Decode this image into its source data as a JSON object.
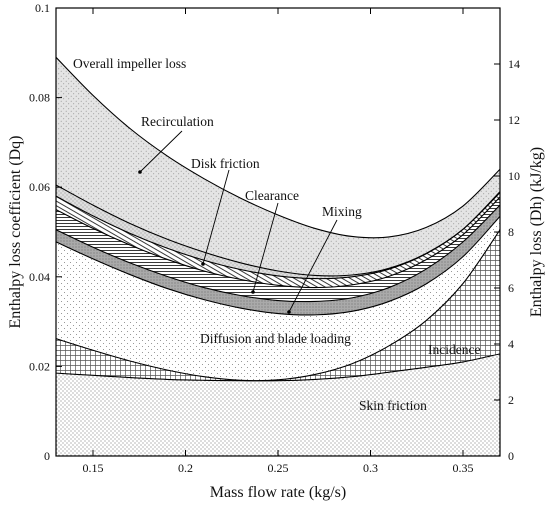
{
  "chart_data": {
    "type": "area",
    "title": "",
    "xlabel": "Mass flow rate (kg/s)",
    "ylabel_left": "Enthalpy loss coefficient (Dq)",
    "ylabel_right": "Enthalpy loss (Dh) (kJ/kg)",
    "xlim": [
      0.13,
      0.37
    ],
    "ylim_left": [
      0,
      0.1
    ],
    "ylim_right_max": 16,
    "x_ticks": [
      0.15,
      0.2,
      0.25,
      0.3,
      0.35
    ],
    "x_tick_labels": [
      "0.15",
      "0.2",
      "0.25",
      "0.3",
      "0.35"
    ],
    "y_ticks_left": [
      0,
      0.02,
      0.04,
      0.06,
      0.08,
      0.1
    ],
    "y_tick_labels_left": [
      "0",
      "0.02",
      "0.04",
      "0.06",
      "0.08",
      "0.1"
    ],
    "y_ticks_right": [
      0,
      2,
      4,
      6,
      8,
      10,
      12,
      14
    ],
    "y_tick_labels_right": [
      "0",
      "2",
      "4",
      "6",
      "8",
      "10",
      "12",
      "14"
    ],
    "x": [
      0.13,
      0.15,
      0.17,
      0.19,
      0.21,
      0.23,
      0.25,
      0.27,
      0.29,
      0.31,
      0.33,
      0.35,
      0.37
    ],
    "boundaries": [
      {
        "name": "Skin friction",
        "values": [
          0.0185,
          0.018,
          0.0175,
          0.0171,
          0.0169,
          0.0168,
          0.0168,
          0.0171,
          0.0177,
          0.0187,
          0.0198,
          0.021,
          0.0228
        ]
      },
      {
        "name": "Incidence",
        "values": [
          0.0262,
          0.0236,
          0.0212,
          0.0192,
          0.0177,
          0.0169,
          0.017,
          0.0182,
          0.0206,
          0.0246,
          0.0302,
          0.0385,
          0.0505
        ]
      },
      {
        "name": "Diffusion and blade loading",
        "values": [
          0.0478,
          0.044,
          0.0405,
          0.0374,
          0.0349,
          0.033,
          0.0318,
          0.0315,
          0.0323,
          0.0345,
          0.0384,
          0.0445,
          0.0535
        ]
      },
      {
        "name": "Mixing",
        "values": [
          0.0505,
          0.0466,
          0.0431,
          0.0401,
          0.0376,
          0.0358,
          0.0347,
          0.0345,
          0.0353,
          0.0376,
          0.0417,
          0.0478,
          0.056
        ]
      },
      {
        "name": "Clearance",
        "values": [
          0.055,
          0.0508,
          0.0471,
          0.0439,
          0.0413,
          0.0394,
          0.0381,
          0.0376,
          0.0382,
          0.0401,
          0.0438,
          0.0494,
          0.0578
        ]
      },
      {
        "name": "Disk friction",
        "values": [
          0.058,
          0.0536,
          0.0497,
          0.0464,
          0.0437,
          0.0416,
          0.0402,
          0.0396,
          0.04,
          0.0417,
          0.0451,
          0.0506,
          0.0588
        ]
      },
      {
        "name": "Recirculation",
        "values": [
          0.0605,
          0.056,
          0.0519,
          0.0484,
          0.0455,
          0.0431,
          0.0413,
          0.0403,
          0.0404,
          0.0419,
          0.0452,
          0.0506,
          0.059
        ]
      },
      {
        "name": "Overall impeller loss",
        "values": [
          0.089,
          0.0805,
          0.0731,
          0.067,
          0.0619,
          0.0575,
          0.0538,
          0.0508,
          0.049,
          0.0489,
          0.051,
          0.0558,
          0.064
        ]
      }
    ],
    "annotations": [
      {
        "text": "Overall impeller loss"
      },
      {
        "text": "Recirculation"
      },
      {
        "text": "Disk friction"
      },
      {
        "text": "Clearance"
      },
      {
        "text": "Mixing"
      },
      {
        "text": "Diffusion and blade loading"
      },
      {
        "text": "Incidence"
      },
      {
        "text": "Skin friction"
      }
    ]
  }
}
